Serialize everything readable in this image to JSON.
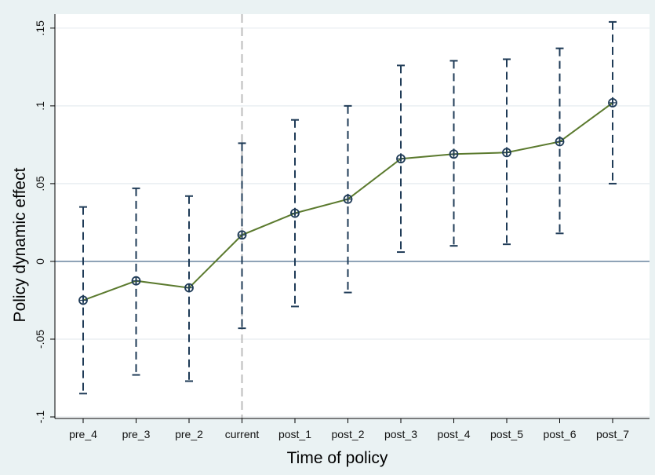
{
  "chart_data": {
    "type": "line",
    "title": "",
    "xlabel": "Time of policy",
    "ylabel": "Policy dynamic effect",
    "categories": [
      "pre_4",
      "pre_3",
      "pre_2",
      "current",
      "post_1",
      "post_2",
      "post_3",
      "post_4",
      "post_5",
      "post_6",
      "post_7"
    ],
    "series": [
      {
        "values": [
          -0.025,
          -0.0125,
          -0.017,
          0.017,
          0.031,
          0.04,
          0.066,
          0.069,
          0.07,
          0.077,
          0.102
        ],
        "ci_upper": [
          0.035,
          0.047,
          0.042,
          0.076,
          0.091,
          0.1,
          0.126,
          0.129,
          0.13,
          0.137,
          0.154
        ],
        "ci_lower": [
          -0.085,
          -0.073,
          -0.077,
          -0.043,
          -0.029,
          -0.02,
          0.006,
          0.01,
          0.011,
          0.018,
          0.05
        ]
      }
    ],
    "yticks": [
      -0.1,
      -0.05,
      0,
      0.05,
      0.1,
      0.15
    ],
    "ytick_labels": [
      "-.1",
      "-.05",
      "0",
      ".05",
      ".1",
      ".15"
    ],
    "ylim": [
      -0.101,
      0.159
    ],
    "reference_line_y": 0,
    "reference_line_x": "current",
    "grid": true,
    "colors": {
      "line": "#5b7a2e",
      "marker": "#1f3b57",
      "ci": "#1f3b57",
      "zero_line": "#5a7895",
      "vline": "#bdbdbd",
      "grid": "#e6ecef",
      "background": "#eaf2f3",
      "plot_background": "#ffffff"
    }
  }
}
